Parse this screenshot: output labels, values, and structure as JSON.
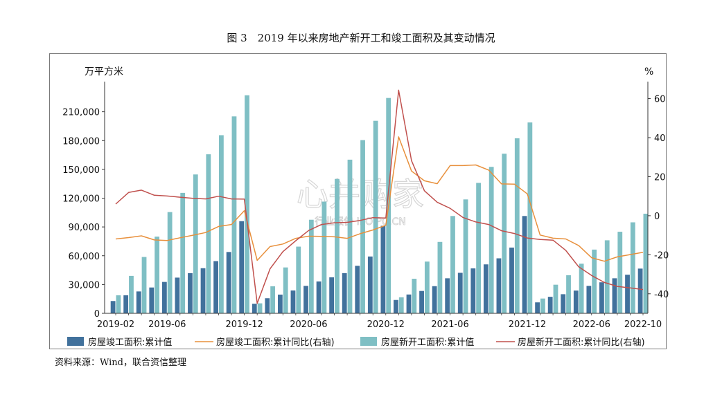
{
  "figure": {
    "title": "图 3　2019 年以来房地产新开工和竣工面积及其变动情况"
  },
  "source": {
    "text": "资料来源：Wind，联合资信整理"
  },
  "watermark": {
    "main": "心并购家",
    "sub": "行业报告 IPOIPO.CN"
  },
  "colors": {
    "completion_bar": "#41719c",
    "new_start_bar": "#7fbfc4",
    "completion_yoy_line": "#e8903c",
    "new_start_yoy_line": "#c0504d",
    "axis": "#333333"
  },
  "chart_data": {
    "type": "bar",
    "left_axis_label": "万平方米",
    "right_axis_label": "%",
    "y_left": {
      "min": 0,
      "max": 240000,
      "ticks": [
        "0",
        "30,000",
        "60,000",
        "90,000",
        "120,000",
        "150,000",
        "180,000",
        "210,000"
      ],
      "tick_values": [
        0,
        30000,
        60000,
        90000,
        120000,
        150000,
        180000,
        210000
      ]
    },
    "y_right": {
      "min": -50,
      "max": 68,
      "ticks": [
        "-40",
        "-20",
        "0",
        "20",
        "40",
        "60"
      ],
      "tick_values": [
        -40,
        -20,
        0,
        20,
        40,
        60
      ]
    },
    "x_tick_labels": [
      {
        "label": "2019-02",
        "index": 0
      },
      {
        "label": "2019-06",
        "index": 4
      },
      {
        "label": "2019-12",
        "index": 10
      },
      {
        "label": "2020-06",
        "index": 15
      },
      {
        "label": "2020-12",
        "index": 21
      },
      {
        "label": "2021-06",
        "index": 26
      },
      {
        "label": "2021-12",
        "index": 32
      },
      {
        "label": "2022-06",
        "index": 37
      },
      {
        "label": "2022-10",
        "index": 41
      }
    ],
    "months": [
      "2019-02",
      "2019-03",
      "2019-04",
      "2019-05",
      "2019-06",
      "2019-07",
      "2019-08",
      "2019-09",
      "2019-10",
      "2019-11",
      "2019-12",
      "2020-02",
      "2020-03",
      "2020-04",
      "2020-05",
      "2020-06",
      "2020-07",
      "2020-08",
      "2020-09",
      "2020-10",
      "2020-11",
      "2020-12",
      "2021-02",
      "2021-03",
      "2021-04",
      "2021-05",
      "2021-06",
      "2021-07",
      "2021-08",
      "2021-09",
      "2021-10",
      "2021-11",
      "2021-12",
      "2022-02",
      "2022-03",
      "2022-04",
      "2022-05",
      "2022-06",
      "2022-07",
      "2022-08",
      "2022-09",
      "2022-10"
    ],
    "series": [
      {
        "name": "房屋竣工面积:累计值",
        "kind": "bar",
        "axis": "left",
        "values": [
          12800,
          18800,
          22800,
          26900,
          32700,
          37200,
          41800,
          47000,
          54400,
          63900,
          96000,
          10000,
          15700,
          19500,
          23800,
          28600,
          33200,
          37500,
          41900,
          49500,
          59200,
          91200,
          13900,
          19600,
          23300,
          28300,
          36500,
          42200,
          46800,
          51000,
          57300,
          68500,
          101400,
          11400,
          17200,
          19900,
          23700,
          28600,
          32300,
          36500,
          40200,
          46600
        ]
      },
      {
        "name": "房屋新开工面积:累计值",
        "kind": "bar",
        "axis": "left",
        "values": [
          18800,
          39000,
          58700,
          79900,
          105500,
          125500,
          144700,
          165700,
          185600,
          205200,
          227200,
          10400,
          28200,
          47800,
          69500,
          97500,
          116400,
          140000,
          160100,
          180500,
          200600,
          224400,
          16700,
          36000,
          53900,
          74400,
          101400,
          118700,
          135900,
          152600,
          166300,
          182400,
          198900,
          15400,
          29800,
          39700,
          51700,
          66400,
          76100,
          85000,
          94800,
          103800
        ]
      },
      {
        "name": "房屋竣工面积:累计同比(右轴)",
        "kind": "line",
        "axis": "right",
        "values": [
          -11.9,
          -11.2,
          -10.3,
          -12.4,
          -12.7,
          -11.3,
          -10.0,
          -8.6,
          -5.5,
          -4.5,
          2.6,
          -22.9,
          -15.8,
          -14.5,
          -11.6,
          -10.5,
          -10.6,
          -10.8,
          -11.6,
          -9.2,
          -7.3,
          -4.9,
          40.4,
          22.9,
          17.9,
          16.4,
          25.7,
          25.7,
          26.0,
          23.4,
          16.3,
          16.2,
          11.2,
          -9.9,
          -11.5,
          -11.9,
          -15.3,
          -21.5,
          -23.3,
          -21.1,
          -19.9,
          -18.7
        ]
      },
      {
        "name": "房屋新开工面积:累计同比(右轴)",
        "kind": "line",
        "axis": "right",
        "values": [
          6.0,
          11.9,
          13.1,
          10.5,
          10.1,
          9.5,
          8.9,
          8.6,
          10.0,
          8.6,
          8.5,
          -44.9,
          -27.2,
          -18.4,
          -12.8,
          -7.6,
          -4.5,
          -3.6,
          -3.4,
          -2.4,
          -1.0,
          -1.2,
          64.3,
          28.2,
          12.8,
          6.9,
          3.8,
          -0.9,
          -3.2,
          -4.5,
          -7.7,
          -9.1,
          -11.4,
          -12.2,
          -12.5,
          -17.8,
          -26.2,
          -30.6,
          -34.2,
          -36.2,
          -37.0,
          -37.8
        ]
      }
    ],
    "legend_position": "bottom"
  }
}
